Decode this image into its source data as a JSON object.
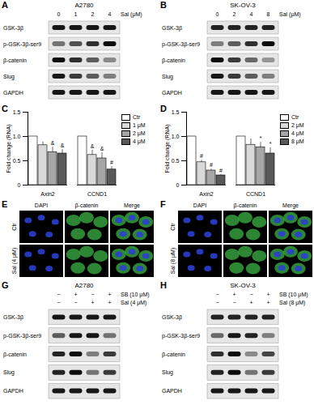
{
  "chart_data": [
    {
      "panel": "C",
      "type": "bar",
      "y_label": "Fold change (RNA)",
      "categories": [
        "Axin2",
        "CCND1"
      ],
      "series": [
        {
          "name": "Ctr",
          "color": "#ffffff",
          "values": [
            1,
            1
          ],
          "errors": [
            0,
            0
          ],
          "annotations": [
            null,
            null
          ]
        },
        {
          "name": "1 μM",
          "color": "#d9d9d9",
          "values": [
            0.82,
            0.62
          ],
          "errors": [
            0.07,
            0.1
          ],
          "annotations": [
            null,
            "&"
          ]
        },
        {
          "name": "2 μM",
          "color": "#a6a6a6",
          "values": [
            0.68,
            0.55
          ],
          "errors": [
            0.1,
            0.12
          ],
          "annotations": [
            "&",
            "&"
          ]
        },
        {
          "name": "4 μM",
          "color": "#595959",
          "values": [
            0.65,
            0.32
          ],
          "errors": [
            0.08,
            0.06
          ],
          "annotations": [
            "&",
            "#"
          ]
        }
      ],
      "ylim": [
        0,
        1.5
      ],
      "yticks": [
        0,
        0.5,
        {
          "value": 1,
          "label": "1.0"
        },
        1.5
      ],
      "grid": false,
      "legend": "right"
    },
    {
      "panel": "D",
      "type": "bar",
      "y_label": "Fold change (RNA)",
      "categories": [
        "Axin2",
        "CCND1"
      ],
      "series": [
        {
          "name": "Ctr",
          "color": "#ffffff",
          "values": [
            1,
            1
          ],
          "errors": [
            0,
            0
          ],
          "annotations": [
            null,
            null
          ]
        },
        {
          "name": "2 μM",
          "color": "#d9d9d9",
          "values": [
            0.47,
            0.83
          ],
          "errors": [
            0.04,
            0.12
          ],
          "annotations": [
            "#",
            null
          ]
        },
        {
          "name": "4 μM",
          "color": "#a6a6a6",
          "values": [
            0.3,
            0.78
          ],
          "errors": [
            0.03,
            0.1
          ],
          "annotations": [
            "#",
            "*"
          ]
        },
        {
          "name": "8 μM",
          "color": "#595959",
          "values": [
            0.2,
            0.65
          ],
          "errors": [
            0.02,
            0.12
          ],
          "annotations": [
            "#",
            "*"
          ]
        }
      ],
      "ylim": [
        0,
        1.5
      ],
      "yticks": [
        0,
        0.5,
        {
          "value": 1,
          "label": "1.0"
        },
        1.5
      ],
      "grid": false,
      "legend": "right"
    }
  ],
  "blots": [
    {
      "panel": "A",
      "title": "A2780",
      "treatments": [
        {
          "label": "Sal (μM)",
          "lanes": [
            "0",
            "1",
            "2",
            "4"
          ]
        }
      ],
      "rows": [
        {
          "label": "GSK-3β",
          "intensity": [
            0.9,
            0.9,
            0.9,
            0.9
          ]
        },
        {
          "label": "p-GSK-3β-ser9",
          "intensity": [
            0.5,
            0.65,
            0.8,
            0.95
          ]
        },
        {
          "label": "β-catenin",
          "intensity": [
            0.95,
            0.8,
            0.6,
            0.4
          ]
        },
        {
          "label": "Slug",
          "intensity": [
            0.9,
            0.75,
            0.6,
            0.45
          ]
        },
        {
          "label": "GAPDH",
          "intensity": [
            0.9,
            0.9,
            0.9,
            0.9
          ]
        }
      ]
    },
    {
      "panel": "B",
      "title": "SK-OV-3",
      "treatments": [
        {
          "label": "Sal (μM)",
          "lanes": [
            "0",
            "2",
            "4",
            "8"
          ]
        }
      ],
      "rows": [
        {
          "label": "GSK-3β",
          "intensity": [
            0.85,
            0.85,
            0.85,
            0.85
          ]
        },
        {
          "label": "p-GSK-3β-ser9",
          "intensity": [
            0.45,
            0.6,
            0.8,
            0.95
          ]
        },
        {
          "label": "β-catenin",
          "intensity": [
            0.95,
            0.75,
            0.55,
            0.35
          ]
        },
        {
          "label": "Slug",
          "intensity": [
            0.9,
            0.75,
            0.6,
            0.45
          ]
        },
        {
          "label": "GAPDH",
          "intensity": [
            0.9,
            0.9,
            0.9,
            0.9
          ]
        }
      ]
    },
    {
      "panel": "G",
      "title": "A2780",
      "treatments": [
        {
          "label": "SB (10 μM)",
          "lanes": [
            "−",
            "+",
            "−",
            "+"
          ]
        },
        {
          "label": "Sal (4 μM)",
          "lanes": [
            "−",
            "−",
            "+",
            "+"
          ]
        }
      ],
      "rows": [
        {
          "label": "GSK-3β",
          "intensity": [
            0.9,
            0.9,
            0.9,
            0.9
          ]
        },
        {
          "label": "p-GSK-3β-ser9",
          "intensity": [
            0.6,
            0.9,
            0.9,
            0.5
          ]
        },
        {
          "label": "β-catenin",
          "intensity": [
            0.85,
            0.95,
            0.45,
            0.75
          ]
        },
        {
          "label": "Slug",
          "intensity": [
            0.85,
            0.95,
            0.5,
            0.75
          ]
        },
        {
          "label": "GAPDH",
          "intensity": [
            0.9,
            0.9,
            0.9,
            0.9
          ]
        }
      ]
    },
    {
      "panel": "H",
      "title": "SK-OV-3",
      "treatments": [
        {
          "label": "SB (10 μM)",
          "lanes": [
            "−",
            "+",
            "−",
            "+"
          ]
        },
        {
          "label": "Sal (8 μM)",
          "lanes": [
            "−",
            "−",
            "+",
            "+"
          ]
        }
      ],
      "rows": [
        {
          "label": "GSK-3β",
          "intensity": [
            0.85,
            0.85,
            0.85,
            0.85
          ]
        },
        {
          "label": "p-GSK-3β-ser9",
          "intensity": [
            0.55,
            0.9,
            0.85,
            0.45
          ]
        },
        {
          "label": "β-catenin",
          "intensity": [
            0.8,
            0.95,
            0.4,
            0.7
          ]
        },
        {
          "label": "Slug",
          "intensity": [
            0.85,
            0.95,
            0.5,
            0.75
          ]
        },
        {
          "label": "GAPDH",
          "intensity": [
            0.9,
            0.9,
            0.9,
            0.9
          ]
        }
      ]
    }
  ],
  "images": [
    {
      "panel": "E",
      "columns": [
        "DAPI",
        "β-catenin",
        "Merge"
      ],
      "rows": [
        "Ctr",
        "Sal (4 μM)"
      ]
    },
    {
      "panel": "F",
      "columns": [
        "DAPI",
        "β-catenin",
        "Merge"
      ],
      "rows": [
        "Ctr",
        "Sal (8 μM)"
      ]
    }
  ]
}
